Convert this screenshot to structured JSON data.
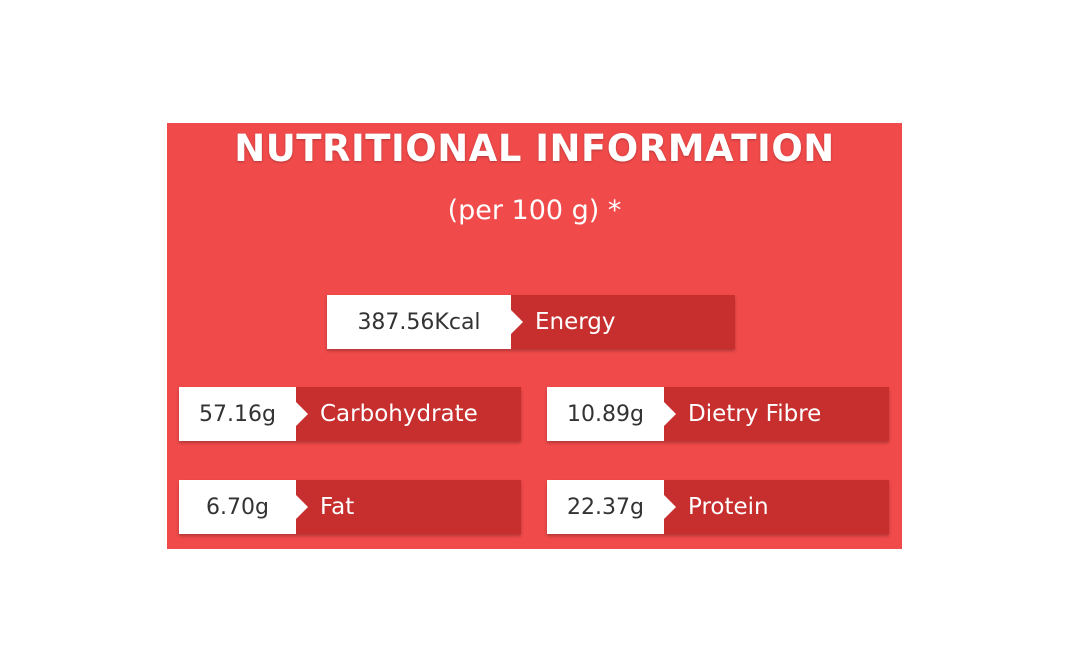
{
  "title": "NUTRITIONAL INFORMATION",
  "subtitle": "(per 100 g) *",
  "colors": {
    "panel": "#f04a4a",
    "label_box": "#c62f2e",
    "value_box": "#ffffff"
  },
  "items": [
    {
      "value": "387.56Kcal",
      "label": "Energy"
    },
    {
      "value": "57.16g",
      "label": "Carbohydrate"
    },
    {
      "value": "10.89g",
      "label": "Dietry Fibre"
    },
    {
      "value": "6.70g",
      "label": "Fat"
    },
    {
      "value": "22.37g",
      "label": "Protein"
    }
  ]
}
